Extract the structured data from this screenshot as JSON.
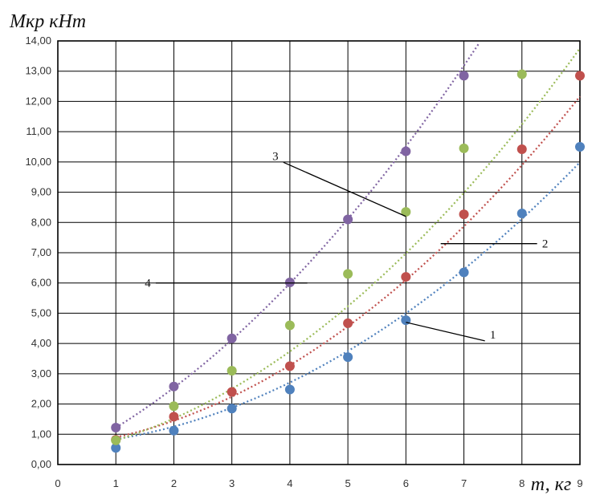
{
  "chart_data": {
    "type": "scatter",
    "title": "",
    "ylabel": "Мкр кНт",
    "xlabel": "т, кг",
    "xlim": [
      0,
      9
    ],
    "ylim": [
      0,
      14
    ],
    "grid": true,
    "x_ticks": [
      "0",
      "1",
      "2",
      "3",
      "4",
      "5",
      "6",
      "7",
      "8",
      "9"
    ],
    "y_ticks": [
      "0,00",
      "1,00",
      "2,00",
      "3,00",
      "4,00",
      "5,00",
      "6,00",
      "7,00",
      "8,00",
      "9,00",
      "10,00",
      "11,00",
      "12,00",
      "13,00",
      "14,00"
    ],
    "trendline": "polynomial, dotted",
    "series": [
      {
        "label": "1",
        "color": "#4f81bd",
        "x": [
          1,
          2,
          3,
          4,
          5,
          6,
          7,
          8,
          9
        ],
        "values": [
          0.55,
          1.12,
          1.85,
          2.48,
          3.55,
          4.77,
          6.35,
          8.3,
          10.5
        ],
        "trend": [
          0.63,
          0.104,
          0.104
        ]
      },
      {
        "label": "2",
        "color": "#c0504d",
        "x": [
          1,
          2,
          3,
          4,
          5,
          6,
          7,
          8,
          9
        ],
        "values": [
          0.82,
          1.58,
          2.4,
          3.25,
          4.67,
          6.2,
          8.27,
          10.42,
          12.85
        ],
        "trend": [
          0.6,
          0.178,
          0.123
        ]
      },
      {
        "label": "3",
        "color": "#9bbb59",
        "x": [
          1,
          2,
          3,
          4,
          5,
          6,
          7,
          8
        ],
        "values": [
          0.8,
          1.93,
          3.1,
          4.6,
          6.3,
          8.35,
          10.45,
          12.9
        ],
        "trend": [
          0.33,
          0.34,
          0.128
        ]
      },
      {
        "label": "4",
        "color": "#8064a2",
        "x": [
          1,
          2,
          3,
          4,
          5,
          6,
          7
        ],
        "values": [
          1.22,
          2.58,
          4.17,
          6.02,
          8.1,
          10.35,
          12.85
        ],
        "trend": [
          0.17,
          0.914,
          0.135
        ]
      }
    ],
    "annotations": [
      {
        "text": "1",
        "series": "1",
        "pointer": [
          6.0,
          4.7
        ],
        "label_at": [
          7.5,
          4.3
        ]
      },
      {
        "text": "2",
        "series": "2",
        "pointer": [
          6.6,
          7.3
        ],
        "label_at": [
          8.4,
          7.3
        ]
      },
      {
        "text": "3",
        "series": "3",
        "pointer": [
          6.0,
          8.2
        ],
        "label_at": [
          3.75,
          10.2
        ]
      },
      {
        "text": "4",
        "series": "4",
        "pointer": [
          4.3,
          6.0
        ],
        "label_at": [
          1.55,
          6.0
        ]
      }
    ]
  }
}
